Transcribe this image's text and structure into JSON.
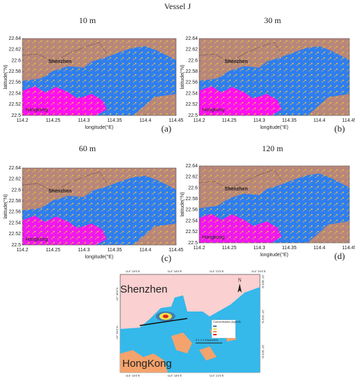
{
  "title": "Vessel J",
  "chart_data": [
    {
      "type": "map",
      "title": "10 m",
      "panel_label": "(a)",
      "xlabel": "longitude(°E)",
      "ylabel": "latitude(°N)",
      "annotations": [
        "Shenzhen",
        "Hongkong"
      ],
      "xlim": [
        114.2,
        114.45
      ],
      "ylim": [
        22.5,
        22.64
      ],
      "xticks": [
        114.2,
        114.25,
        114.3,
        114.35,
        114.4,
        114.45
      ],
      "yticks": [
        22.5,
        22.52,
        22.54,
        22.56,
        22.58,
        22.6,
        22.62,
        22.64
      ]
    },
    {
      "type": "map",
      "title": "30 m",
      "panel_label": "(b)",
      "xlabel": "longitude(°E)",
      "ylabel": "latitude(°N)",
      "annotations": [
        "Shenzhen",
        "Hongkong"
      ],
      "xlim": [
        114.2,
        114.45
      ],
      "ylim": [
        22.5,
        22.64
      ],
      "xticks": [
        114.2,
        114.25,
        114.3,
        114.35,
        114.4,
        114.45
      ],
      "yticks": [
        22.5,
        22.52,
        22.54,
        22.56,
        22.58,
        22.6,
        22.62,
        22.64
      ]
    },
    {
      "type": "map",
      "title": "60 m",
      "panel_label": "(c)",
      "xlabel": "longitude(°E)",
      "ylabel": "latitude(°N)",
      "annotations": [
        "Shenzhen",
        "Hongkong"
      ],
      "xlim": [
        114.2,
        114.45
      ],
      "ylim": [
        22.5,
        22.64
      ],
      "xticks": [
        114.2,
        114.25,
        114.3,
        114.35,
        114.4,
        114.45
      ],
      "yticks": [
        22.5,
        22.52,
        22.54,
        22.56,
        22.58,
        22.6,
        22.62,
        22.64
      ]
    },
    {
      "type": "map",
      "title": "120 m",
      "panel_label": "(d)",
      "xlabel": "longitude(°E)",
      "ylabel": "latitude(°N)",
      "annotations": [
        "Shenzhen",
        "Hongkong"
      ],
      "xlim": [
        114.2,
        114.45
      ],
      "ylim": [
        22.5,
        22.64
      ],
      "xticks": [
        114.2,
        114.25,
        114.3,
        114.35,
        114.4,
        114.45
      ],
      "yticks": [
        22.5,
        22.52,
        22.54,
        22.56,
        22.58,
        22.6,
        22.62,
        22.64
      ]
    }
  ],
  "inset_map": {
    "places": [
      "Shenzhen",
      "HongKong"
    ],
    "north": "N",
    "top_labels": [
      "114° 15'0\"E",
      "114° 18'0\"E",
      "114° 21'0\"E",
      "114° 24'0\"E"
    ],
    "bottom_labels": [
      "114° 15'0\"E",
      "114° 18'0\"E",
      "114° 21'0\"E"
    ],
    "left_labels": [
      "22° 36'0\"N",
      "22° 33'0\"N"
    ],
    "right_labels": [
      "22° 36'0\"N",
      "22° 33'0\"N",
      "22° 30'0\"N"
    ],
    "legend_title": "Concentration (kg/m3)",
    "scale": "0  1  2       4 Kilometers"
  }
}
